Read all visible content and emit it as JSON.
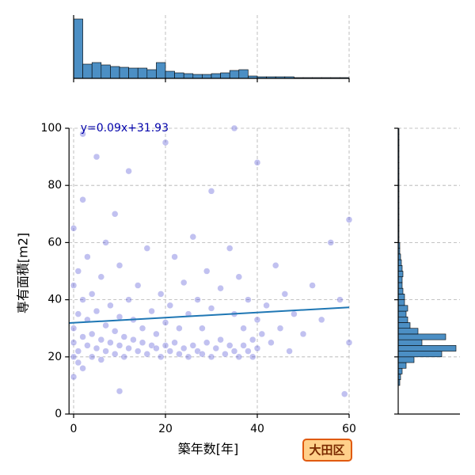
{
  "chart_data": {
    "type": "scatter",
    "x_label": "築年数[年]",
    "y_label": "専有面積[m2]",
    "annotation": "y=0.09x+31.93",
    "badge": "大田区",
    "xlim": [
      -1,
      60
    ],
    "xticks": [
      0,
      20,
      40,
      60
    ],
    "ylim": [
      0,
      100
    ],
    "yticks": [
      0,
      20,
      40,
      60,
      80,
      100
    ],
    "grid": true,
    "point_color": "#3333cc",
    "regression": {
      "slope": 0.09,
      "intercept": 31.93,
      "color": "#1f77b4"
    },
    "series": [
      {
        "x": [
          0,
          0,
          0,
          0,
          0,
          0,
          1,
          1,
          1,
          1,
          2,
          2,
          2,
          2,
          3,
          3,
          3,
          4,
          4,
          4,
          5,
          5,
          5,
          6,
          6,
          6,
          7,
          7,
          7,
          8,
          8,
          9,
          9,
          9,
          10,
          10,
          10,
          11,
          11,
          12,
          12,
          12,
          13,
          13,
          14,
          14,
          15,
          15,
          16,
          16,
          17,
          17,
          18,
          18,
          19,
          19,
          20,
          20,
          20,
          21,
          21,
          22,
          22,
          23,
          23,
          24,
          24,
          25,
          25,
          26,
          26,
          27,
          27,
          28,
          28,
          29,
          29,
          30,
          30,
          30,
          31,
          32,
          32,
          33,
          34,
          34,
          35,
          35,
          36,
          36,
          37,
          37,
          38,
          38,
          39,
          39,
          40,
          40,
          40,
          41,
          42,
          43,
          44,
          45,
          46,
          47,
          48,
          50,
          52,
          54,
          56,
          58,
          60,
          60,
          59,
          2,
          10,
          35
        ],
        "values": [
          20,
          25,
          30,
          45,
          65,
          13,
          22,
          35,
          50,
          18,
          27,
          40,
          75,
          16,
          24,
          33,
          55,
          20,
          28,
          42,
          23,
          36,
          90,
          19,
          26,
          48,
          22,
          31,
          60,
          25,
          38,
          21,
          29,
          70,
          24,
          34,
          52,
          20,
          27,
          23,
          40,
          85,
          26,
          33,
          22,
          45,
          25,
          30,
          21,
          58,
          24,
          36,
          23,
          28,
          20,
          42,
          24,
          32,
          95,
          22,
          38,
          25,
          55,
          21,
          30,
          23,
          46,
          20,
          35,
          24,
          62,
          22,
          40,
          21,
          30,
          25,
          50,
          20,
          37,
          78,
          23,
          26,
          44,
          21,
          24,
          58,
          22,
          35,
          20,
          48,
          24,
          30,
          22,
          40,
          20,
          26,
          23,
          33,
          88,
          28,
          38,
          25,
          52,
          30,
          42,
          22,
          35,
          28,
          45,
          33,
          60,
          40,
          25,
          68,
          7,
          98,
          8,
          100
        ]
      }
    ],
    "top_histogram": {
      "bins": [
        0,
        2,
        4,
        6,
        8,
        10,
        12,
        14,
        16,
        18,
        20,
        22,
        24,
        26,
        28,
        30,
        32,
        34,
        36,
        38,
        40,
        42,
        44,
        46,
        48,
        50,
        52,
        54,
        56,
        58,
        60
      ],
      "counts": [
        75,
        18,
        20,
        17,
        15,
        14,
        13,
        13,
        11,
        20,
        9,
        7,
        6,
        5,
        5,
        6,
        7,
        10,
        11,
        3,
        2,
        2,
        2,
        2,
        1,
        1,
        1,
        1,
        1,
        1
      ],
      "ylim": [
        0,
        75
      ],
      "color": "#4c8fc4"
    },
    "right_histogram": {
      "bins": [
        10,
        12,
        14,
        16,
        18,
        20,
        22,
        24,
        26,
        28,
        30,
        32,
        34,
        36,
        38,
        40,
        42,
        44,
        46,
        48,
        50,
        52,
        54,
        56,
        58,
        60,
        62,
        64,
        66,
        68,
        70,
        72,
        74,
        76,
        78,
        80,
        82,
        84,
        86,
        88,
        90,
        92,
        94,
        96,
        98,
        100
      ],
      "counts": [
        2,
        3,
        5,
        10,
        20,
        55,
        73,
        30,
        60,
        25,
        15,
        12,
        10,
        12,
        8,
        8,
        6,
        5,
        5,
        6,
        5,
        4,
        3,
        2,
        2,
        1,
        1,
        1,
        1,
        1,
        1,
        1,
        1,
        1,
        1,
        1,
        1,
        1,
        1,
        1,
        1,
        1,
        1,
        1,
        1
      ],
      "xlim": [
        0,
        75
      ],
      "color": "#4c8fc4"
    }
  }
}
